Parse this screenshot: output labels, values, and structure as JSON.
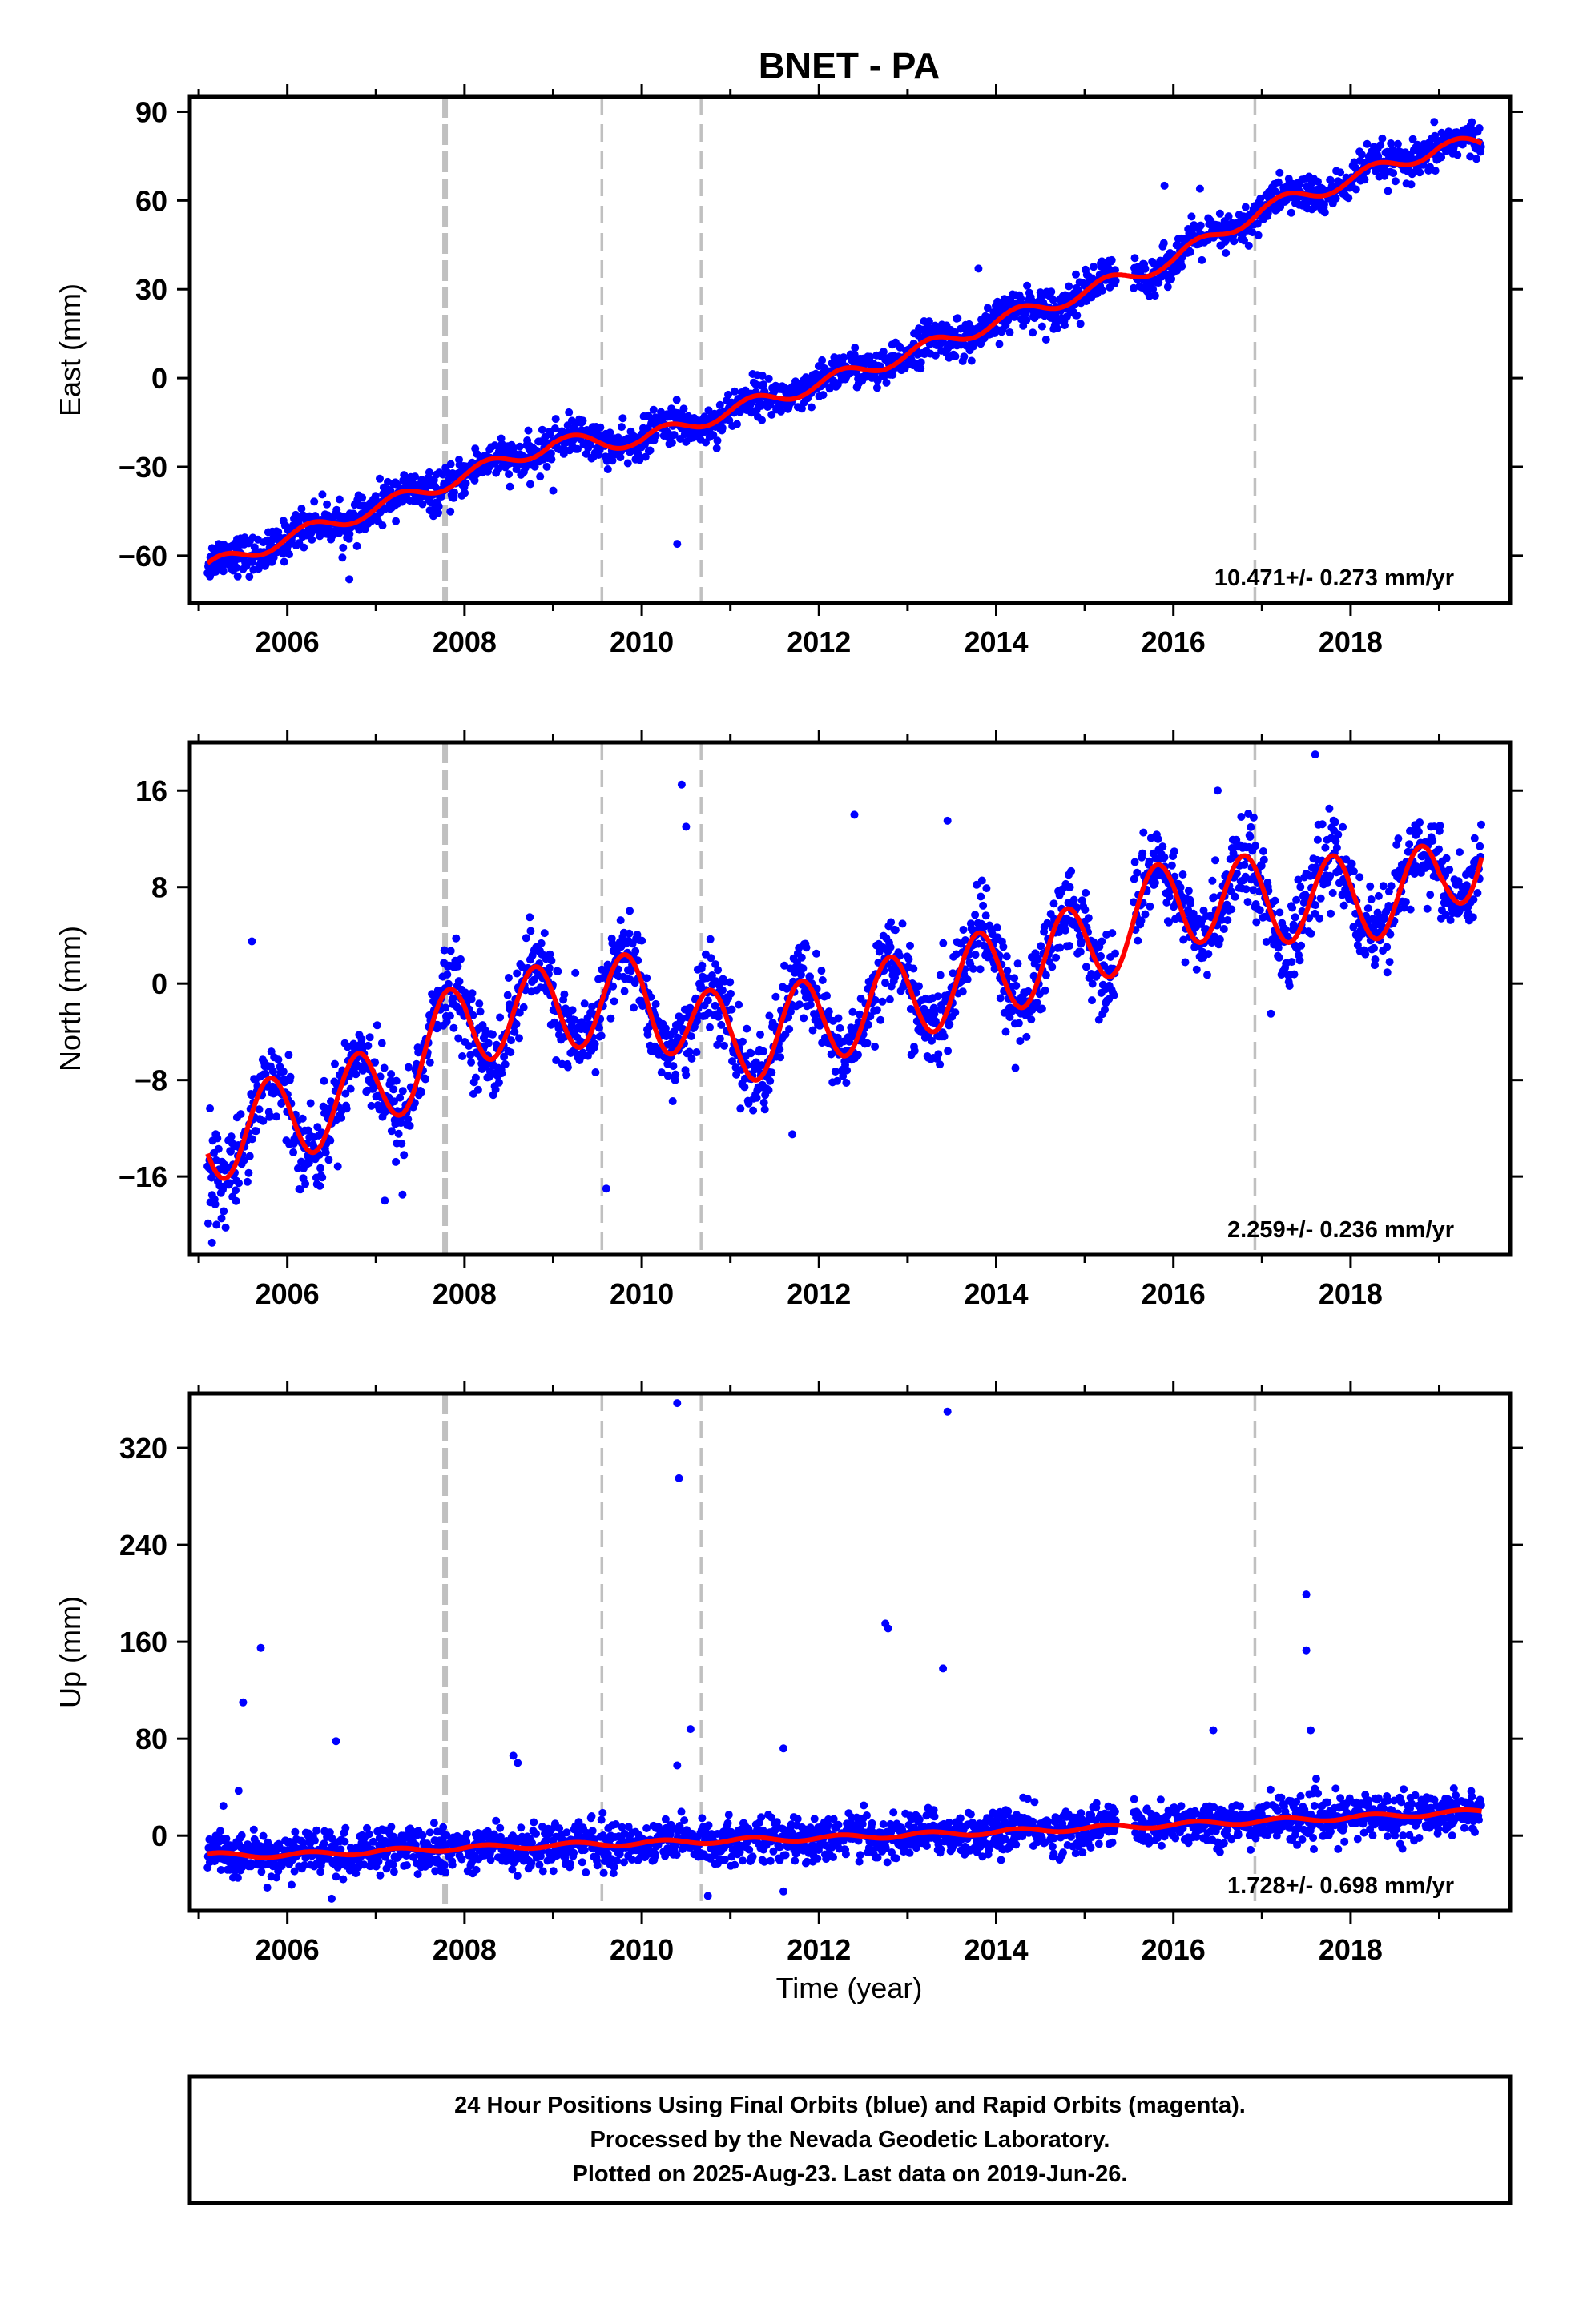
{
  "title": "BNET - PA",
  "colors": {
    "points": "#0000ff",
    "fit": "#ff0000",
    "event_lines": "#c0c0c0",
    "frame": "#000000"
  },
  "xlabel": "Time (year)",
  "x_tick_labels": [
    "2006",
    "2008",
    "2010",
    "2012",
    "2014",
    "2016",
    "2018"
  ],
  "footer": {
    "line1": "24 Hour Positions Using Final Orbits (blue) and Rapid Orbits (magenta).",
    "line2": "Processed by the Nevada Geodetic Laboratory.",
    "line3": "Plotted on 2025-Aug-23. Last data on 2019-Jun-26."
  },
  "chart_data": [
    {
      "type": "scatter",
      "title": "BNET - PA",
      "xlabel": "",
      "ylabel": "East (mm)",
      "xlim": [
        2004.9,
        2019.8
      ],
      "ylim": [
        -76,
        95
      ],
      "yticks": [
        -60,
        -30,
        0,
        30,
        60,
        90
      ],
      "xticks": [
        2006,
        2008,
        2010,
        2012,
        2014,
        2016,
        2018
      ],
      "event_lines": [
        {
          "x": 2007.78,
          "style": "thick"
        },
        {
          "x": 2009.55,
          "style": "thin"
        },
        {
          "x": 2010.67,
          "style": "thin"
        },
        {
          "x": 2016.92,
          "style": "thin"
        }
      ],
      "rate_label": "10.471+/- 0.273 mm/yr",
      "fit_model": {
        "t0": 2012.0,
        "ref": -2.5,
        "rate": 10.471,
        "annual_amp": 2.5,
        "annual_phase": 0.0,
        "steps": [
          {
            "x": 2009.55,
            "dy": -5.5
          },
          {
            "x": 2016.92,
            "dy": 4.0
          }
        ]
      },
      "noise_mm": 3.2,
      "data_gap": [
        2015.35,
        2015.55
      ],
      "series": [
        {
          "name": "Final Orbits (blue)",
          "x": [
            2005.1,
            2006.0,
            2007.0,
            2008.0,
            2009.0,
            2010.0,
            2011.0,
            2012.0,
            2013.0,
            2014.0,
            2015.0,
            2016.0,
            2017.0,
            2018.0,
            2019.0,
            2019.48
          ],
          "values": [
            -64,
            -54,
            -44,
            -33,
            -22,
            -21,
            -11,
            -2,
            8,
            19,
            29,
            40,
            57,
            67,
            78,
            79
          ]
        }
      ],
      "outliers": [
        [
          2010.4,
          -56
        ],
        [
          2015.9,
          65
        ],
        [
          2016.3,
          64
        ],
        [
          2013.8,
          37
        ],
        [
          2014.9,
          35
        ],
        [
          2009.0,
          -38
        ],
        [
          2006.7,
          -68
        ]
      ]
    },
    {
      "type": "scatter",
      "xlabel": "",
      "ylabel": "North (mm)",
      "xlim": [
        2004.9,
        2019.8
      ],
      "ylim": [
        -22.5,
        20
      ],
      "yticks": [
        -16,
        -8,
        0,
        8,
        16
      ],
      "xticks": [
        2006,
        2008,
        2010,
        2012,
        2014,
        2016,
        2018
      ],
      "event_lines": [
        {
          "x": 2007.78,
          "style": "thick"
        },
        {
          "x": 2009.55,
          "style": "thin"
        },
        {
          "x": 2010.67,
          "style": "thin"
        },
        {
          "x": 2016.92,
          "style": "thin"
        }
      ],
      "rate_label": "2.259+/- 0.236 mm/yr",
      "fit_model": {
        "t0": 2012.0,
        "ref": -3.0,
        "rate": 2.259,
        "annual_amp": 3.6,
        "annual_phase": 0.55,
        "steps": [
          {
            "x": 2009.55,
            "dy": -1.0
          },
          {
            "x": 2010.67,
            "dy": -2.0
          },
          {
            "x": 2016.92,
            "dy": 0.5
          }
        ]
      },
      "noise_mm": 1.7,
      "data_gap": [
        2015.35,
        2015.55
      ],
      "series": [
        {
          "name": "Final Orbits (blue)",
          "x": [
            2005.1,
            2006.0,
            2007.0,
            2008.0,
            2009.0,
            2010.0,
            2011.0,
            2012.0,
            2013.0,
            2014.0,
            2015.0,
            2016.0,
            2017.0,
            2018.0,
            2019.0,
            2019.48
          ],
          "values": [
            -13,
            -11,
            -9,
            -3,
            -2,
            -1,
            -5,
            -3,
            -1,
            1,
            3,
            7,
            7,
            7,
            8,
            12
          ]
        }
      ],
      "outliers": [
        [
          2005.6,
          3.5
        ],
        [
          2009.6,
          -17
        ],
        [
          2010.45,
          16.5
        ],
        [
          2012.4,
          14
        ],
        [
          2013.45,
          13.5
        ],
        [
          2017.6,
          19
        ],
        [
          2016.5,
          16
        ],
        [
          2007.1,
          -18
        ],
        [
          2007.3,
          -17.5
        ],
        [
          2011.7,
          -12.5
        ],
        [
          2005.15,
          -21.5
        ],
        [
          2005.2,
          -20
        ],
        [
          2017.1,
          -2.5
        ],
        [
          2010.5,
          13
        ]
      ]
    },
    {
      "type": "scatter",
      "xlabel": "Time (year)",
      "ylabel": "Up (mm)",
      "xlim": [
        2004.9,
        2019.8
      ],
      "ylim": [
        -62,
        365
      ],
      "yticks": [
        0,
        80,
        160,
        240,
        320
      ],
      "xticks": [
        2006,
        2008,
        2010,
        2012,
        2014,
        2016,
        2018
      ],
      "event_lines": [
        {
          "x": 2007.78,
          "style": "thick"
        },
        {
          "x": 2009.55,
          "style": "thin"
        },
        {
          "x": 2010.67,
          "style": "thin"
        },
        {
          "x": 2016.92,
          "style": "thin"
        }
      ],
      "rate_label": "1.728+/- 0.698 mm/yr",
      "fit_model": {
        "t0": 2012.0,
        "ref": -3.0,
        "rate": 1.728,
        "annual_amp": 2.0,
        "annual_phase": 0.0,
        "steps": [
          {
            "x": 2009.55,
            "dy": -4.0
          },
          {
            "x": 2016.92,
            "dy": 3.0
          }
        ]
      },
      "noise_mm": 9.0,
      "data_gap": [
        2015.35,
        2015.55
      ],
      "series": [
        {
          "name": "Final Orbits (blue)",
          "x": [
            2005.1,
            2006.0,
            2008.0,
            2010.0,
            2012.0,
            2014.0,
            2016.0,
            2018.0,
            2019.48
          ],
          "values": [
            -16,
            -16,
            -10,
            -6,
            -2,
            3,
            9,
            15,
            20
          ]
        }
      ],
      "outliers": [
        [
          2010.4,
          357
        ],
        [
          2010.42,
          295
        ],
        [
          2013.45,
          350
        ],
        [
          2012.75,
          175
        ],
        [
          2012.78,
          171
        ],
        [
          2013.4,
          138
        ],
        [
          2005.5,
          110
        ],
        [
          2005.7,
          155
        ],
        [
          2017.5,
          199
        ],
        [
          2017.5,
          153
        ],
        [
          2017.55,
          87
        ],
        [
          2006.55,
          78
        ],
        [
          2011.6,
          72
        ],
        [
          2016.45,
          87
        ],
        [
          2008.55,
          66
        ],
        [
          2008.6,
          60
        ],
        [
          2010.55,
          88
        ],
        [
          2010.4,
          58
        ],
        [
          2005.45,
          37
        ],
        [
          2011.6,
          -46
        ],
        [
          2006.5,
          -52
        ]
      ]
    }
  ]
}
